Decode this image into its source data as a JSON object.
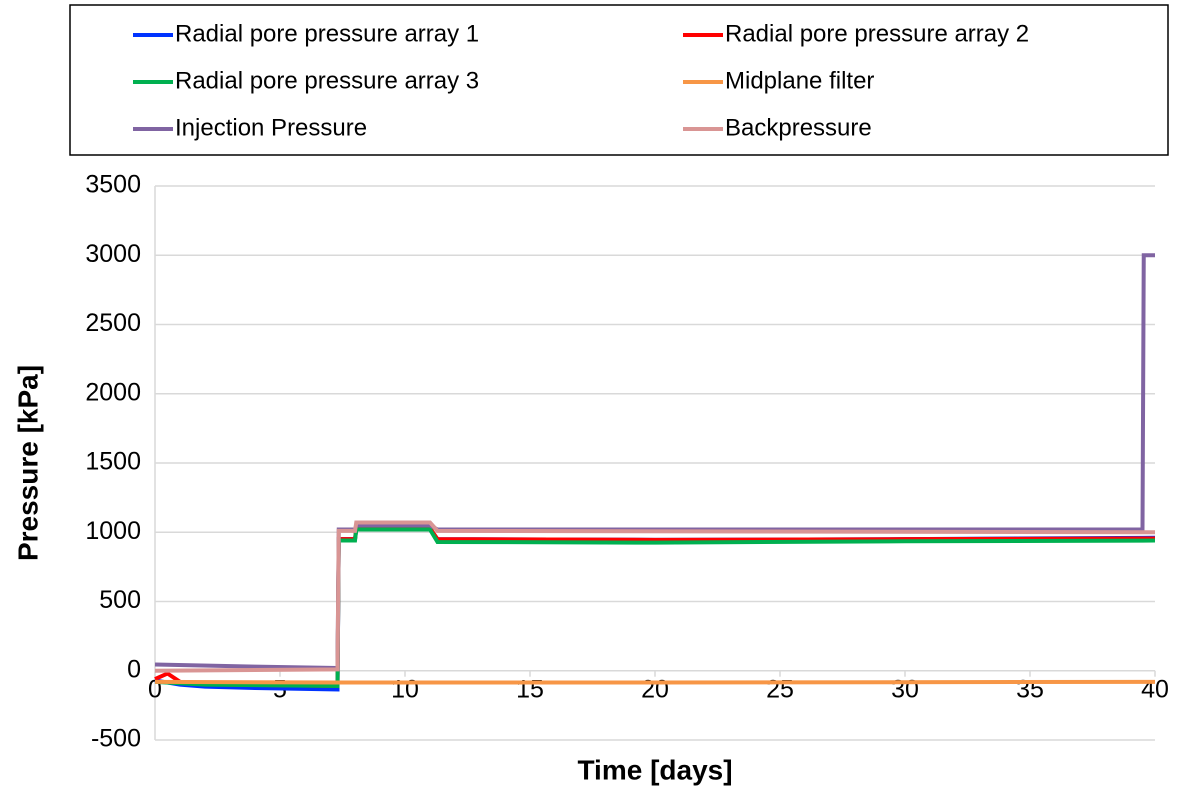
{
  "chart_data": {
    "type": "line",
    "xlabel": "Time [days]",
    "ylabel": "Pressure [kPa]",
    "xlim": [
      0,
      40
    ],
    "xticks": [
      0,
      5,
      10,
      15,
      20,
      25,
      30,
      35,
      40
    ],
    "ylim": [
      -500,
      3500
    ],
    "yticks": [
      -500,
      0,
      500,
      1000,
      1500,
      2000,
      2500,
      3000,
      3500
    ],
    "grid": true,
    "series": [
      {
        "name": "Radial pore pressure array 1",
        "color": "#0033ff",
        "x": [
          0,
          1,
          2,
          4,
          7.3,
          7.35,
          8,
          8.05,
          11,
          11.3,
          20,
          30,
          40
        ],
        "values": [
          -70,
          -100,
          -115,
          -125,
          -135,
          950,
          950,
          1020,
          1020,
          950,
          945,
          950,
          960
        ]
      },
      {
        "name": "Radial pore pressure array 2",
        "color": "#ff0000",
        "x": [
          0,
          0.5,
          1,
          3,
          7.3,
          7.35,
          8,
          8.05,
          11,
          11.3,
          20,
          30,
          40
        ],
        "values": [
          -60,
          -20,
          -80,
          -100,
          -110,
          950,
          950,
          1030,
          1030,
          950,
          945,
          950,
          955
        ]
      },
      {
        "name": "Radial pore pressure array 3",
        "color": "#00b050",
        "x": [
          0,
          2,
          7.3,
          7.35,
          8,
          8.05,
          11,
          11.3,
          20,
          30,
          40
        ],
        "values": [
          -80,
          -100,
          -110,
          940,
          940,
          1020,
          1020,
          930,
          925,
          935,
          940
        ]
      },
      {
        "name": "Midplane filter",
        "color": "#f79646",
        "x": [
          0,
          7.3,
          20,
          40
        ],
        "values": [
          -80,
          -85,
          -85,
          -80
        ]
      },
      {
        "name": "Injection Pressure",
        "color": "#8064a2",
        "x": [
          0,
          4,
          7.3,
          7.35,
          8,
          8.05,
          11,
          11.3,
          39.5,
          39.55,
          40
        ],
        "values": [
          45,
          30,
          20,
          1020,
          1020,
          1050,
          1050,
          1020,
          1020,
          3000,
          3000
        ]
      },
      {
        "name": "Backpressure",
        "color": "#d99594",
        "x": [
          0,
          7.3,
          7.35,
          8,
          8.05,
          11,
          11.3,
          40
        ],
        "values": [
          0,
          10,
          1010,
          1010,
          1070,
          1070,
          1010,
          1000
        ]
      }
    ]
  }
}
